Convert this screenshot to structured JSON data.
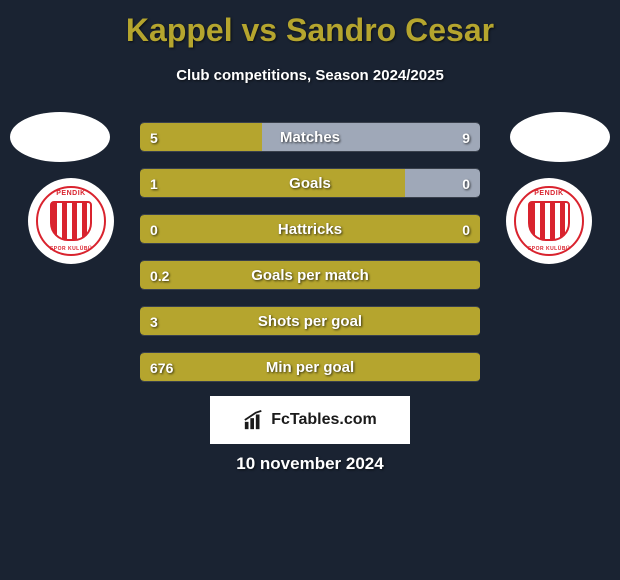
{
  "title": "Kappel vs Sandro Cesar",
  "subtitle": "Club competitions, Season 2024/2025",
  "date": "10 november 2024",
  "footer_brand": "FcTables.com",
  "colors": {
    "bar_primary": "#b5a52e",
    "bar_secondary": "#9fa8b8",
    "title_color": "#b5a52e",
    "text_color": "#ffffff",
    "background": "#1a2332",
    "crest_red": "#d9232e"
  },
  "crest_label_top": "PENDIK",
  "crest_label_bot": "SPOR KULÜBÜ",
  "stats": [
    {
      "label": "Matches",
      "left_value": "5",
      "right_value": "9",
      "left_pct": 36,
      "right_pct": 64,
      "left_color": "#b5a52e",
      "right_color": "#9fa8b8",
      "show_right": true
    },
    {
      "label": "Goals",
      "left_value": "1",
      "right_value": "0",
      "left_pct": 78,
      "right_pct": 22,
      "left_color": "#b5a52e",
      "right_color": "#9fa8b8",
      "show_right": true
    },
    {
      "label": "Hattricks",
      "left_value": "0",
      "right_value": "0",
      "left_pct": 100,
      "right_pct": 0,
      "left_color": "#b5a52e",
      "right_color": "#9fa8b8",
      "show_right": true
    },
    {
      "label": "Goals per match",
      "left_value": "0.2",
      "right_value": "",
      "left_pct": 100,
      "right_pct": 0,
      "left_color": "#b5a52e",
      "right_color": "#9fa8b8",
      "show_right": false
    },
    {
      "label": "Shots per goal",
      "left_value": "3",
      "right_value": "",
      "left_pct": 100,
      "right_pct": 0,
      "left_color": "#b5a52e",
      "right_color": "#9fa8b8",
      "show_right": false
    },
    {
      "label": "Min per goal",
      "left_value": "676",
      "right_value": "",
      "left_pct": 100,
      "right_pct": 0,
      "left_color": "#b5a52e",
      "right_color": "#9fa8b8",
      "show_right": false
    }
  ]
}
